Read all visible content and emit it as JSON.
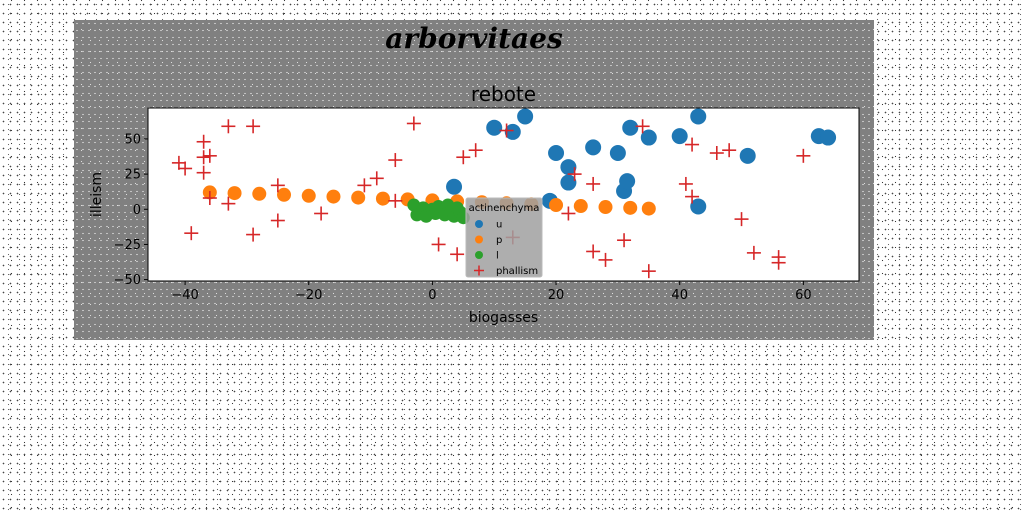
{
  "figure": {
    "suptitle": "arborvitaes",
    "background": "#808080"
  },
  "chart_data": {
    "type": "scatter",
    "title": "rebote",
    "xlabel": "biogasses",
    "ylabel": "illeism",
    "xlim": [
      -46,
      69
    ],
    "ylim": [
      -51,
      72
    ],
    "xticks": [
      -40,
      -20,
      0,
      20,
      40,
      60
    ],
    "yticks": [
      -50,
      -25,
      0,
      25,
      50
    ],
    "grid": false,
    "legend": {
      "title": "actinenchyma",
      "location": "center",
      "entries": [
        "u",
        "p",
        "l",
        "phallism"
      ]
    },
    "series": [
      {
        "name": "u",
        "marker": "circle",
        "color": "#1f77b4",
        "points": [
          [
            3.5,
            16
          ],
          [
            10,
            58
          ],
          [
            13,
            55
          ],
          [
            15,
            66
          ],
          [
            19,
            6
          ],
          [
            20,
            40
          ],
          [
            22,
            30
          ],
          [
            22,
            19
          ],
          [
            26,
            44
          ],
          [
            30,
            40
          ],
          [
            31,
            13
          ],
          [
            31.5,
            20
          ],
          [
            32,
            58
          ],
          [
            35,
            51
          ],
          [
            40,
            52
          ],
          [
            43,
            66
          ],
          [
            43,
            2
          ],
          [
            51,
            38
          ],
          [
            62.5,
            52
          ],
          [
            64,
            51
          ]
        ]
      },
      {
        "name": "p",
        "marker": "circle",
        "color": "#ff7f0e",
        "points": [
          [
            -36,
            12
          ],
          [
            -32,
            11.5
          ],
          [
            -28,
            11
          ],
          [
            -24,
            10.3
          ],
          [
            -20,
            9.6
          ],
          [
            -16,
            9
          ],
          [
            -12,
            8.3
          ],
          [
            -8,
            7.6
          ],
          [
            -4,
            7
          ],
          [
            0,
            6.3
          ],
          [
            4,
            5.6
          ],
          [
            8,
            5
          ],
          [
            12,
            4.3
          ],
          [
            16,
            3.6
          ],
          [
            20,
            3
          ],
          [
            24,
            2.3
          ],
          [
            28,
            1.6
          ],
          [
            32,
            1
          ],
          [
            35,
            0.5
          ]
        ]
      },
      {
        "name": "l",
        "marker": "circle",
        "color": "#2ca02c",
        "points": [
          [
            -3,
            3
          ],
          [
            -2.5,
            -4
          ],
          [
            -1.5,
            1
          ],
          [
            -1,
            -5
          ],
          [
            0,
            0
          ],
          [
            0.5,
            -3
          ],
          [
            1,
            2
          ],
          [
            2,
            -4
          ],
          [
            2.5,
            3
          ],
          [
            3,
            -1
          ],
          [
            3.5,
            -5
          ],
          [
            4,
            1
          ],
          [
            4.5,
            -2
          ],
          [
            5,
            -6
          ]
        ]
      },
      {
        "name": "phallism",
        "marker": "plus",
        "color": "#d62728",
        "points": [
          [
            -41,
            33
          ],
          [
            -40,
            29
          ],
          [
            -39,
            -17
          ],
          [
            -37,
            48
          ],
          [
            -37,
            37
          ],
          [
            -37,
            26
          ],
          [
            -36,
            38
          ],
          [
            -36,
            8
          ],
          [
            -33,
            59
          ],
          [
            -33,
            4
          ],
          [
            -29,
            59
          ],
          [
            -29,
            -18
          ],
          [
            -25,
            17
          ],
          [
            -25,
            -8
          ],
          [
            -18,
            -3
          ],
          [
            -11,
            17
          ],
          [
            -9,
            22
          ],
          [
            -6,
            35
          ],
          [
            -6,
            6
          ],
          [
            -3,
            61
          ],
          [
            1,
            -25
          ],
          [
            4,
            -32
          ],
          [
            5,
            37
          ],
          [
            7,
            42
          ],
          [
            12,
            56
          ],
          [
            13,
            -20
          ],
          [
            22,
            -3
          ],
          [
            23,
            25
          ],
          [
            26,
            18
          ],
          [
            26,
            -30
          ],
          [
            28,
            -36
          ],
          [
            31,
            -22
          ],
          [
            34,
            59
          ],
          [
            35,
            -44
          ],
          [
            41,
            18
          ],
          [
            42,
            46
          ],
          [
            42,
            9
          ],
          [
            46,
            40
          ],
          [
            48,
            42
          ],
          [
            50,
            -7
          ],
          [
            52,
            -31
          ],
          [
            56,
            -34
          ],
          [
            56,
            -38
          ],
          [
            60,
            38
          ]
        ]
      }
    ]
  }
}
